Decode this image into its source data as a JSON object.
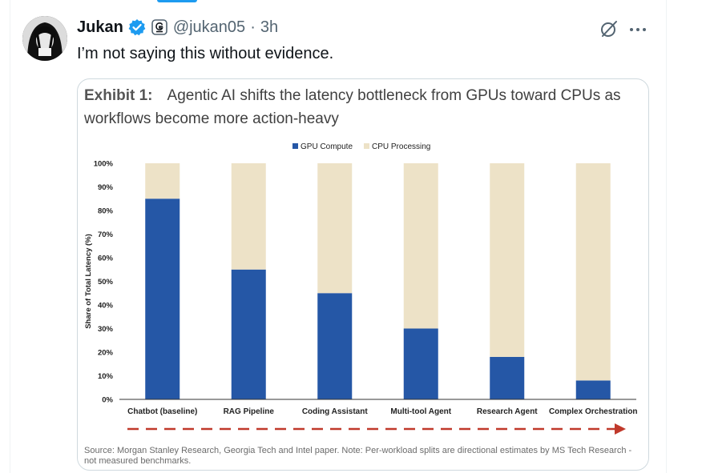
{
  "tweet": {
    "author_name": "Jukan",
    "handle": "@jukan05",
    "separator": "·",
    "time": "3h",
    "text": "I’m not saying this without evidence."
  },
  "icons": {
    "verified": "verified-badge-icon",
    "automated": "automated-account-icon",
    "grok": "grok-icon",
    "more": "more-icon"
  },
  "media": {
    "exhibit_label": "Exhibit 1:",
    "exhibit_title": "Agentic AI shifts the latency bottleneck from GPUs toward CPUs as workflows become more action-heavy",
    "source_note": "Source: Morgan Stanley Research, Georgia Tech and Intel paper. Note: Per-workload splits are directional estimates by MS Tech Research - not measured benchmarks."
  },
  "chart_data": {
    "type": "bar",
    "stacked": true,
    "categories": [
      "Chatbot (baseline)",
      "RAG Pipeline",
      "Coding Assistant",
      "Multi-tool Agent",
      "Research Agent",
      "Complex Orchestration"
    ],
    "series": [
      {
        "name": "GPU Compute",
        "values": [
          85,
          55,
          45,
          30,
          18,
          8
        ],
        "color": "#2557a6"
      },
      {
        "name": "CPU Processing",
        "values": [
          15,
          45,
          55,
          70,
          82,
          92
        ],
        "color": "#ede2c7"
      }
    ],
    "ylabel": "Share of Total Latency (%)",
    "ylim": [
      0,
      100
    ],
    "yticks": [
      "0%",
      "10%",
      "20%",
      "30%",
      "40%",
      "50%",
      "60%",
      "70%",
      "80%",
      "90%",
      "100%"
    ],
    "legend_position": "top-center",
    "grid": false,
    "arrow_color": "#c0392b"
  }
}
